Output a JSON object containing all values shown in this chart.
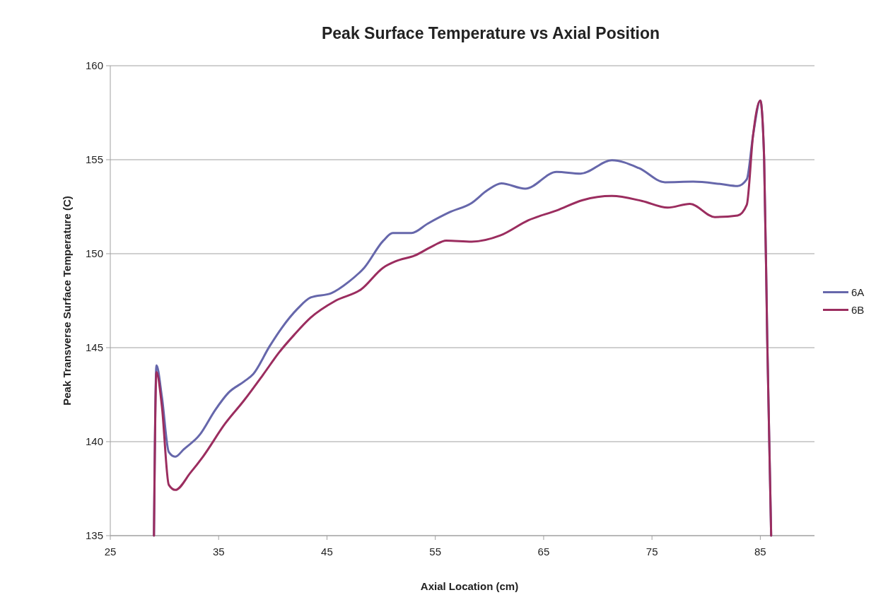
{
  "chart_data": {
    "type": "line",
    "title": "Peak Surface Temperature vs Axial Position",
    "xlabel": "Axial Location (cm)",
    "ylabel": "Peak Transverse Surface Temperature (C)",
    "xlim": [
      25,
      90
    ],
    "xticks": [
      25,
      35,
      45,
      55,
      65,
      75,
      85
    ],
    "ylim": [
      135,
      160
    ],
    "yticks": [
      135,
      140,
      145,
      150,
      155,
      160
    ],
    "grid": "y",
    "legend": "right",
    "marker": "none",
    "line_style": "solid",
    "series": [
      {
        "name": "6A",
        "color": "#6667ab",
        "x": [
          29.03,
          29.26,
          29.76,
          30.4,
          30.98,
          31.8,
          33.26,
          34.7,
          35.9,
          37.35,
          38.2,
          39.7,
          40.85,
          42.3,
          43.5,
          45.4,
          47.0,
          48.45,
          50.2,
          51.07,
          52.8,
          54.3,
          56.3,
          58.36,
          59.8,
          61.1,
          63.3,
          66.2,
          68.4,
          71.3,
          73.8,
          76.2,
          78.8,
          81.4,
          82.9,
          83.75,
          84.33,
          85.0,
          85.35,
          85.64,
          86.0
        ],
        "values": [
          135,
          144.06,
          142.4,
          139.45,
          139.2,
          139.6,
          140.37,
          141.7,
          142.6,
          143.2,
          143.6,
          145.07,
          146.07,
          147.08,
          147.67,
          147.9,
          148.5,
          149.26,
          150.69,
          151.1,
          151.1,
          151.6,
          152.2,
          152.7,
          153.37,
          153.74,
          153.46,
          154.35,
          154.26,
          154.97,
          154.55,
          153.8,
          153.83,
          153.7,
          153.6,
          153.96,
          156.3,
          158.15,
          155.1,
          145.4,
          135
        ]
      },
      {
        "name": "6B",
        "color": "#9b2d5f",
        "x": [
          29.03,
          29.26,
          29.76,
          30.4,
          31.0,
          32.4,
          33.55,
          35.6,
          37.35,
          39.1,
          40.56,
          42.0,
          43.5,
          45.8,
          48.15,
          50.2,
          51.36,
          53.1,
          54.87,
          56.0,
          58.36,
          61.0,
          63.6,
          66.2,
          68.6,
          71.3,
          74.1,
          76.45,
          78.5,
          80.8,
          82.9,
          83.75,
          84.33,
          85.0,
          85.35,
          85.64,
          86.0
        ],
        "values": [
          135,
          143.7,
          141.9,
          137.7,
          137.43,
          138.35,
          139.2,
          140.96,
          142.2,
          143.56,
          144.73,
          145.7,
          146.6,
          147.5,
          148.1,
          149.26,
          149.6,
          149.9,
          150.44,
          150.7,
          150.64,
          150.97,
          151.78,
          152.3,
          152.85,
          153.07,
          152.8,
          152.45,
          152.65,
          151.95,
          152.03,
          152.6,
          156.3,
          158.15,
          155.1,
          145.4,
          135
        ]
      }
    ]
  }
}
